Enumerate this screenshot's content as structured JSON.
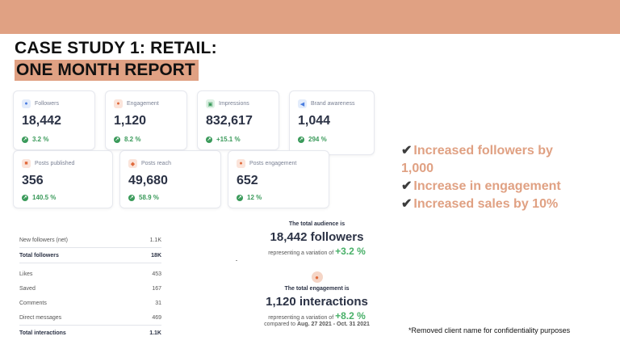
{
  "header": {
    "title_line1": "CASE STUDY 1: RETAIL:",
    "title_line2": "ONE MONTH REPORT",
    "bar_color": "#e0a183"
  },
  "cards": [
    {
      "label": "Followers",
      "value": "18,442",
      "change": "3.2 %",
      "icon": "people-icon",
      "icon_color": "#4a7de0"
    },
    {
      "label": "Engagement",
      "value": "1,120",
      "change": "8.2 %",
      "icon": "chat-icon",
      "icon_color": "#e06a3c"
    },
    {
      "label": "Impressions",
      "value": "832,617",
      "change": "+15.1 %",
      "icon": "frame-icon",
      "icon_color": "#3a9a5a"
    },
    {
      "label": "Brand awareness",
      "value": "1,044",
      "change": "294 %",
      "icon": "megaphone-icon",
      "icon_color": "#4a7de0"
    },
    {
      "label": "Posts published",
      "value": "356",
      "change": "140.5 %",
      "icon": "post-icon",
      "icon_color": "#e06a3c"
    },
    {
      "label": "Posts reach",
      "value": "49,680",
      "change": "58.9 %",
      "icon": "reach-icon",
      "icon_color": "#e06a3c"
    },
    {
      "label": "Posts engagement",
      "value": "652",
      "change": "12 %",
      "icon": "chat-icon",
      "icon_color": "#e06a3c"
    }
  ],
  "bullets": [
    {
      "check": "✔",
      "text": "Increased followers by 1,000"
    },
    {
      "check": "✔",
      "text": "Increase in engagement"
    },
    {
      "check": "✔",
      "text": "Increased sales by 10%"
    }
  ],
  "table": {
    "rows": [
      {
        "label": "New followers (net)",
        "value": "1.1K"
      },
      {
        "label": "Total followers",
        "value": "18K"
      },
      {
        "label": "Likes",
        "value": "453"
      },
      {
        "label": "Saved",
        "value": "167"
      },
      {
        "label": "Comments",
        "value": "31"
      },
      {
        "label": "Direct messages",
        "value": "469"
      },
      {
        "label": "Total interactions",
        "value": "1.1K"
      }
    ]
  },
  "audience": {
    "title": "The total audience is",
    "big": "18,442 followers",
    "var_prefix": "representing a variation of",
    "var_value": "+3.2 %"
  },
  "engagement_summary": {
    "title": "The total engagement is",
    "big": "1,120 interactions",
    "var_prefix": "representing a variation of",
    "var_value": "+8.2 %",
    "compared": "compared to",
    "period": "Aug. 27 2021 - Oct. 31 2021"
  },
  "note": "*Removed client name for confidentiality purposes"
}
